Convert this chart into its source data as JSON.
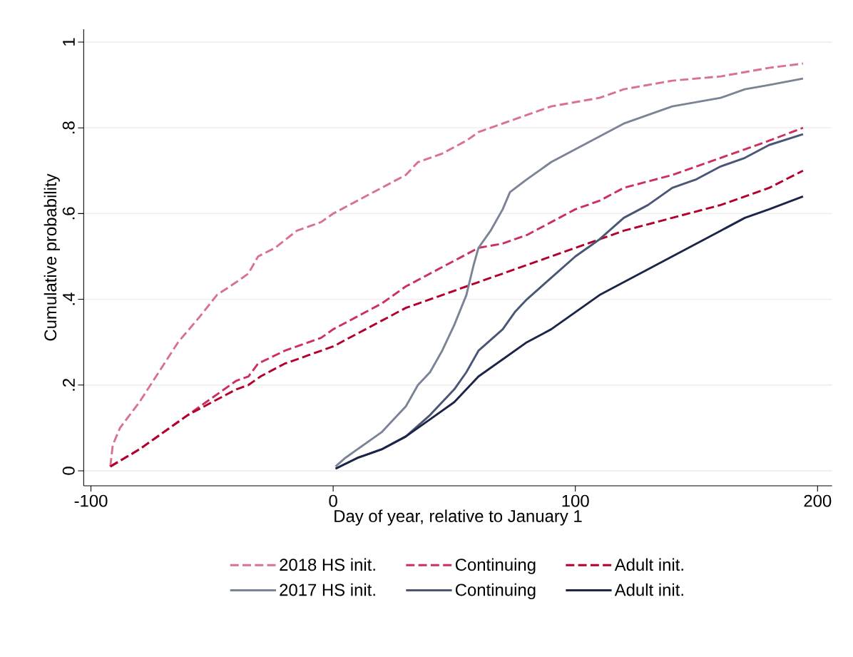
{
  "chart_data": {
    "type": "line",
    "xlabel": "Day of year, relative to January 1",
    "ylabel": "Cumulative probability",
    "xlim": [
      -103,
      206
    ],
    "ylim": [
      -0.035,
      1.03
    ],
    "xticks": [
      -100,
      0,
      100,
      200
    ],
    "yticks": [
      {
        "value": 0,
        "label": "0"
      },
      {
        "value": 0.2,
        "label": ".2"
      },
      {
        "value": 0.4,
        "label": ".4"
      },
      {
        "value": 0.6,
        "label": ".6"
      },
      {
        "value": 0.8,
        "label": ".8"
      },
      {
        "value": 1,
        "label": "1"
      }
    ],
    "grid": "y",
    "legend": "bottom",
    "series": [
      {
        "name": "2018 HS init.",
        "color": "#d9728f",
        "line_style": "dashed",
        "x": [
          -92,
          -91,
          -88,
          -80,
          -72,
          -64,
          -55,
          -48,
          -40,
          -35,
          -31,
          -24,
          -15,
          -5,
          0,
          10,
          20,
          30,
          35,
          45,
          55,
          60,
          70,
          80,
          90,
          100,
          110,
          120,
          140,
          160,
          180,
          194
        ],
        "values": [
          0.01,
          0.06,
          0.1,
          0.16,
          0.23,
          0.3,
          0.36,
          0.41,
          0.44,
          0.46,
          0.5,
          0.52,
          0.56,
          0.58,
          0.6,
          0.63,
          0.66,
          0.69,
          0.72,
          0.74,
          0.77,
          0.79,
          0.81,
          0.83,
          0.85,
          0.86,
          0.87,
          0.89,
          0.91,
          0.92,
          0.94,
          0.95
        ]
      },
      {
        "name": "Continuing",
        "color": "#cc3060",
        "line_style": "dashed",
        "x": [
          -92,
          -80,
          -70,
          -60,
          -50,
          -40,
          -35,
          -31,
          -20,
          -10,
          -5,
          0,
          10,
          20,
          30,
          40,
          50,
          60,
          70,
          80,
          90,
          100,
          110,
          120,
          140,
          160,
          180,
          194
        ],
        "values": [
          0.01,
          0.05,
          0.09,
          0.13,
          0.17,
          0.21,
          0.22,
          0.25,
          0.28,
          0.3,
          0.31,
          0.33,
          0.36,
          0.39,
          0.43,
          0.46,
          0.49,
          0.52,
          0.53,
          0.55,
          0.58,
          0.61,
          0.63,
          0.66,
          0.69,
          0.73,
          0.77,
          0.8
        ]
      },
      {
        "name": "Adult init.",
        "color": "#b3002c",
        "line_style": "dashed",
        "x": [
          -92,
          -80,
          -70,
          -60,
          -50,
          -40,
          -35,
          -30,
          -20,
          -10,
          0,
          10,
          20,
          30,
          40,
          50,
          60,
          70,
          80,
          90,
          100,
          110,
          120,
          140,
          160,
          180,
          194
        ],
        "values": [
          0.01,
          0.05,
          0.09,
          0.13,
          0.16,
          0.19,
          0.2,
          0.22,
          0.25,
          0.27,
          0.29,
          0.32,
          0.35,
          0.38,
          0.4,
          0.42,
          0.44,
          0.46,
          0.48,
          0.5,
          0.52,
          0.54,
          0.56,
          0.59,
          0.62,
          0.66,
          0.7
        ]
      },
      {
        "name": "2017 HS init.",
        "color": "#7b8396",
        "line_style": "solid",
        "x": [
          1,
          5,
          10,
          15,
          20,
          25,
          30,
          35,
          40,
          45,
          50,
          55,
          58,
          60,
          65,
          70,
          73,
          80,
          90,
          100,
          110,
          120,
          130,
          140,
          150,
          160,
          170,
          180,
          194
        ],
        "values": [
          0.01,
          0.03,
          0.05,
          0.07,
          0.09,
          0.12,
          0.15,
          0.2,
          0.23,
          0.28,
          0.34,
          0.41,
          0.48,
          0.52,
          0.56,
          0.61,
          0.65,
          0.68,
          0.72,
          0.75,
          0.78,
          0.81,
          0.83,
          0.85,
          0.86,
          0.87,
          0.89,
          0.9,
          0.915
        ]
      },
      {
        "name": "Continuing",
        "color": "#4b5677",
        "line_style": "solid",
        "x": [
          1,
          10,
          20,
          30,
          40,
          50,
          55,
          60,
          70,
          75,
          80,
          90,
          100,
          110,
          120,
          130,
          140,
          150,
          160,
          170,
          180,
          194
        ],
        "values": [
          0.005,
          0.03,
          0.05,
          0.08,
          0.13,
          0.19,
          0.23,
          0.28,
          0.33,
          0.37,
          0.4,
          0.45,
          0.5,
          0.54,
          0.59,
          0.62,
          0.66,
          0.68,
          0.71,
          0.73,
          0.76,
          0.785
        ]
      },
      {
        "name": "Adult init.",
        "color": "#1b2548",
        "line_style": "solid",
        "x": [
          1,
          10,
          20,
          30,
          40,
          50,
          55,
          60,
          70,
          80,
          90,
          100,
          110,
          120,
          130,
          140,
          150,
          160,
          170,
          180,
          194
        ],
        "values": [
          0.005,
          0.03,
          0.05,
          0.08,
          0.12,
          0.16,
          0.19,
          0.22,
          0.26,
          0.3,
          0.33,
          0.37,
          0.41,
          0.44,
          0.47,
          0.5,
          0.53,
          0.56,
          0.59,
          0.61,
          0.64
        ]
      }
    ]
  }
}
